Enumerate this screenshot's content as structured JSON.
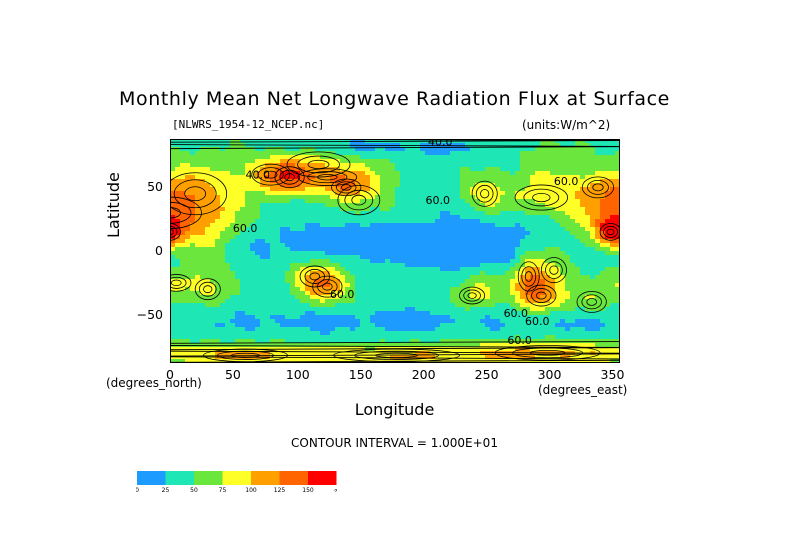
{
  "chart_data": {
    "type": "heatmap",
    "title": "Monthly Mean Net Longwave Radiation Flux at Surface",
    "file_label": "[NLWRS_1954-12_NCEP.nc]",
    "units_label": "(units:W/m^2)",
    "xlabel": "Longitude",
    "ylabel": "Latitude",
    "x_unit_label": "(degrees_north)",
    "x_unit_label_2": "(degrees_east)",
    "xlim": [
      0,
      357.5
    ],
    "ylim": [
      -88,
      88
    ],
    "x_ticks": [
      0,
      50,
      100,
      150,
      200,
      250,
      300,
      350
    ],
    "y_ticks": [
      50,
      0,
      -50
    ],
    "y_tick_labels": [
      "50",
      "0",
      "−50"
    ],
    "contour_interval_text": "CONTOUR INTERVAL = 1.000E+01",
    "contour_labels": [
      {
        "text": "40.0",
        "lon": 60,
        "lat": 57
      },
      {
        "text": "40.0",
        "lon": 205,
        "lat": 83
      },
      {
        "text": "60.0",
        "lon": 305,
        "lat": 52
      },
      {
        "text": "60.0",
        "lon": 203,
        "lat": 37
      },
      {
        "text": "60.0",
        "lon": 50,
        "lat": 15
      },
      {
        "text": "60.0",
        "lon": 127,
        "lat": -37
      },
      {
        "text": "60.0",
        "lon": 265,
        "lat": -52
      },
      {
        "text": "60.0",
        "lon": 282,
        "lat": -58
      },
      {
        "text": "60.0",
        "lon": 268,
        "lat": -73
      }
    ],
    "colorbar": {
      "colors": [
        "#1e9bff",
        "#1ee6b4",
        "#6ae63c",
        "#ffff28",
        "#ffa000",
        "#ff6400",
        "#ff0000"
      ],
      "labels": [
        "0",
        "25",
        "50",
        "75",
        "100",
        "125",
        "150",
        "∞"
      ]
    }
  }
}
